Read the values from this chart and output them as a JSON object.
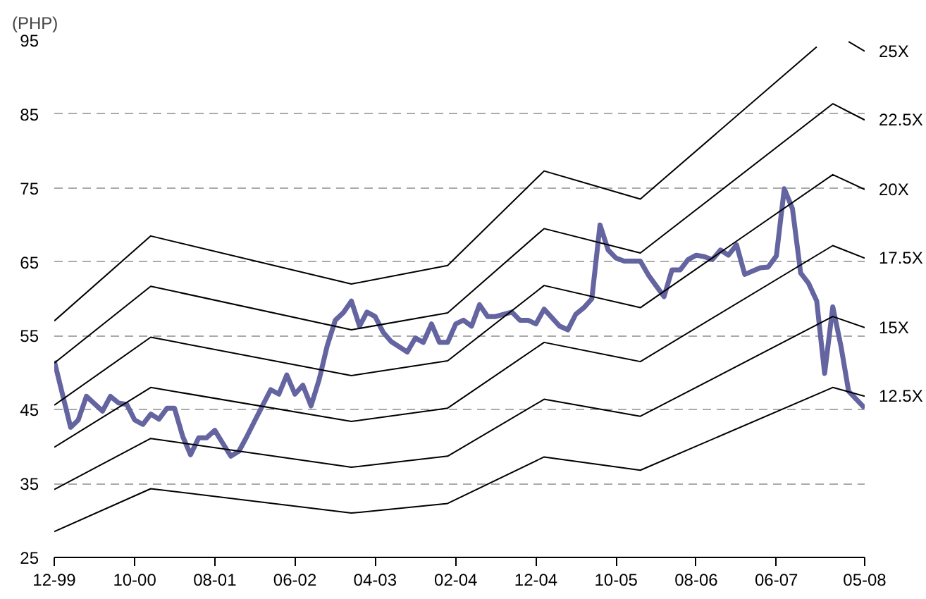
{
  "chart_data": {
    "type": "line",
    "ylabel": "(PHP)",
    "x": [
      "1999-12",
      "2000-02",
      "2000-03",
      "2000-04",
      "2000-06",
      "2000-07",
      "2000-08",
      "2000-09",
      "2000-10",
      "2000-11",
      "2000-12",
      "2001-01",
      "2001-02",
      "2001-03",
      "2001-04",
      "2001-05",
      "2001-06",
      "2001-07",
      "2001-08",
      "2001-09",
      "2001-10",
      "2001-11",
      "2001-12",
      "2002-01",
      "2002-03",
      "2002-04",
      "2002-05",
      "2002-06",
      "2002-07",
      "2002-08",
      "2002-09",
      "2002-10",
      "2002-11",
      "2002-12",
      "2003-01",
      "2003-02",
      "2003-03",
      "2003-04",
      "2003-05",
      "2003-06",
      "2003-08",
      "2003-09",
      "2003-10",
      "2003-11",
      "2003-12",
      "2004-01",
      "2004-02",
      "2004-03",
      "2004-04",
      "2004-05",
      "2004-06",
      "2004-07",
      "2004-09",
      "2004-10",
      "2004-11",
      "2004-12",
      "2005-01",
      "2005-02",
      "2005-03",
      "2005-04",
      "2005-05",
      "2005-06",
      "2005-07",
      "2005-08",
      "2005-09",
      "2005-10",
      "2005-11",
      "2006-01",
      "2006-02",
      "2006-03",
      "2006-04",
      "2006-05",
      "2006-06",
      "2006-07",
      "2006-08",
      "2006-09",
      "2006-10",
      "2006-11",
      "2006-12",
      "2007-01",
      "2007-02",
      "2007-04",
      "2007-05",
      "2007-06",
      "2007-07",
      "2007-08",
      "2007-09",
      "2007-10",
      "2007-11",
      "2007-12",
      "2008-01",
      "2008-02",
      "2008-03",
      "2008-05"
    ],
    "series": [
      {
        "color": "#6464a0",
        "values": [
          51.6,
          42.6,
          43.6,
          46.8,
          44.8,
          46.8,
          45.9,
          45.7,
          43.6,
          43.0,
          44.4,
          43.7,
          45.2,
          45.2,
          41.4,
          38.9,
          41.2,
          41.2,
          42.2,
          40.4,
          38.7,
          39.4,
          41.4,
          43.6,
          47.7,
          47.1,
          49.7,
          47.1,
          48.3,
          45.5,
          49.1,
          53.6,
          57.1,
          58.1,
          59.7,
          56.3,
          58.2,
          57.6,
          55.5,
          54.2,
          52.8,
          54.7,
          54.1,
          56.6,
          54.1,
          54.1,
          56.6,
          57.1,
          56.3,
          59.2,
          57.6,
          57.6,
          58.2,
          57.1,
          57.1,
          56.6,
          58.6,
          57.4,
          56.3,
          55.8,
          57.9,
          58.8,
          60.0,
          70.0,
          66.6,
          65.5,
          65.1,
          65.1,
          63.2,
          61.8,
          60.3,
          63.9,
          63.9,
          65.3,
          65.9,
          65.7,
          65.3,
          66.6,
          65.9,
          67.3,
          63.3,
          64.2,
          64.3,
          65.8,
          74.9,
          72.2,
          63.5,
          62.1,
          59.7,
          49.9,
          58.9,
          53.6,
          47.5,
          45.2
        ]
      },
      {
        "name": "25X",
        "color": "#000000",
        "x": [
          "1999-12",
          "2000-12",
          "2003-01",
          "2004-01",
          "2005-01",
          "2006-01",
          "2007-11",
          "2008-01",
          "2008-03",
          "2008-05"
        ],
        "values": [
          57.0,
          68.5,
          62.0,
          64.5,
          77.3,
          73.5,
          94.1,
          null,
          94.8,
          93.5
        ]
      },
      {
        "name": "22.5X",
        "color": "#000000",
        "x": [
          "1999-12",
          "2000-12",
          "2003-01",
          "2004-01",
          "2005-01",
          "2006-01",
          "2008-01",
          "2008-05"
        ],
        "values": [
          51.3,
          61.7,
          55.8,
          58.1,
          69.5,
          66.2,
          86.4,
          84.2
        ]
      },
      {
        "name": "20X",
        "color": "#000000",
        "x": [
          "1999-12",
          "2000-12",
          "2003-01",
          "2004-01",
          "2005-01",
          "2006-01",
          "2008-01",
          "2008-05"
        ],
        "values": [
          45.6,
          54.8,
          49.6,
          51.6,
          61.8,
          58.8,
          76.8,
          74.8
        ]
      },
      {
        "name": "17.5X",
        "color": "#000000",
        "x": [
          "1999-12",
          "2000-12",
          "2003-01",
          "2004-01",
          "2005-01",
          "2006-01",
          "2008-01",
          "2008-05"
        ],
        "values": [
          39.9,
          48.0,
          43.4,
          45.2,
          54.1,
          51.5,
          67.2,
          65.5
        ]
      },
      {
        "name": "15X",
        "color": "#000000",
        "x": [
          "1999-12",
          "2000-12",
          "2003-01",
          "2004-01",
          "2005-01",
          "2006-01",
          "2008-01",
          "2008-05"
        ],
        "values": [
          34.2,
          41.1,
          37.2,
          38.7,
          46.4,
          44.1,
          57.6,
          56.1
        ]
      },
      {
        "name": "12.5X",
        "color": "#000000",
        "x": [
          "1999-12",
          "2000-12",
          "2003-01",
          "2004-01",
          "2005-01",
          "2006-01",
          "2008-01",
          "2008-05"
        ],
        "values": [
          28.5,
          34.3,
          31.0,
          32.3,
          38.6,
          36.8,
          48.0,
          46.8
        ]
      }
    ],
    "xlim": [
      "1999-12",
      "2008-05"
    ],
    "xticks": [
      {
        "value": "1999-12",
        "label": "12-99"
      },
      {
        "value": "2000-10",
        "label": "10-00"
      },
      {
        "value": "2001-08",
        "label": "08-01"
      },
      {
        "value": "2002-06",
        "label": "06-02"
      },
      {
        "value": "2003-04",
        "label": "04-03"
      },
      {
        "value": "2004-02",
        "label": "02-04"
      },
      {
        "value": "2004-12",
        "label": "12-04"
      },
      {
        "value": "2005-10",
        "label": "10-05"
      },
      {
        "value": "2006-08",
        "label": "08-06"
      },
      {
        "value": "2007-06",
        "label": "06-07"
      },
      {
        "value": "2008-05",
        "label": "05-08"
      }
    ],
    "ylim": [
      25,
      95
    ],
    "yticks": [
      25,
      35,
      45,
      55,
      65,
      75,
      85,
      95
    ],
    "grid": "y"
  }
}
